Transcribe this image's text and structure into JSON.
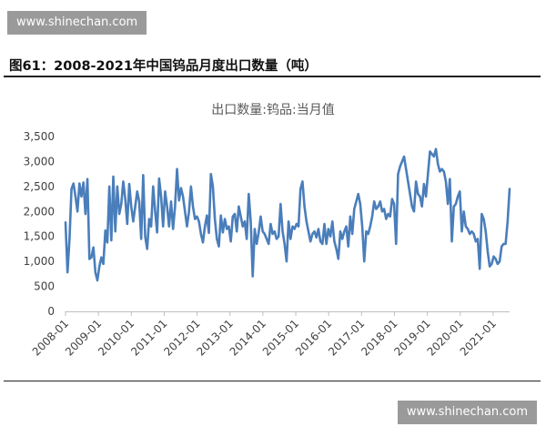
{
  "watermark": "www.shinechan.com",
  "figure_title": "图61：2008-2021年中国钨品月度出口数量（吨）",
  "chart_data": {
    "type": "line",
    "title": "出口数量:钨品:当月值",
    "xlabel": "",
    "ylabel": "",
    "ylim": [
      0,
      3500
    ],
    "yticks": [
      0,
      500,
      1000,
      1500,
      2000,
      2500,
      3000,
      3500
    ],
    "ytick_labels": [
      "0",
      "500",
      "1,000",
      "1,500",
      "2,000",
      "2,500",
      "3,000",
      "3,500"
    ],
    "xticks": [
      "2008-01",
      "2009-01",
      "2010-01",
      "2011-01",
      "2012-01",
      "2013-01",
      "2014-01",
      "2015-01",
      "2016-01",
      "2017-01",
      "2018-01",
      "2019-01",
      "2020-01",
      "2021-01"
    ],
    "grid": false,
    "legend": "none",
    "line_color": "#4a7ebb",
    "x_start": "2008-01",
    "x_end": "2021-07",
    "series": [
      {
        "values": [
          1780,
          780,
          1450,
          2450,
          2560,
          2300,
          2000,
          2560,
          2300,
          2580,
          1950,
          2650,
          1050,
          1080,
          1280,
          780,
          620,
          900,
          1080,
          950,
          1620,
          1380,
          2500,
          1420,
          2700,
          1600,
          2500,
          1950,
          2150,
          2600,
          2250,
          1750,
          2550,
          2100,
          1800,
          2100,
          2400,
          2200,
          1450,
          2730,
          1500,
          1250,
          1850,
          1700,
          2500,
          2000,
          1580,
          2660,
          2300,
          1700,
          2400,
          2100,
          1700,
          2200,
          1650,
          2100,
          2850,
          2220,
          2470,
          2300,
          2000,
          1700,
          2000,
          2500,
          2100,
          1850,
          1900,
          1800,
          1550,
          1380,
          1700,
          1920,
          1570,
          2750,
          2500,
          1850,
          1450,
          1300,
          1920,
          1580,
          1850,
          1650,
          1700,
          1400,
          1900,
          1950,
          1600,
          2100,
          1900,
          1700,
          1800,
          1450,
          2350,
          1800,
          700,
          1650,
          1350,
          1580,
          1900,
          1600,
          1550,
          1450,
          1350,
          1750,
          1550,
          1600,
          1450,
          1500,
          2150,
          1600,
          1350,
          1000,
          1800,
          1450,
          1700,
          1650,
          1750,
          1700,
          2450,
          2600,
          2100,
          1800,
          1600,
          1400,
          1550,
          1600,
          1480,
          1650,
          1400,
          1350,
          1750,
          1350,
          1650,
          1500,
          1800,
          1400,
          1250,
          1050,
          1600,
          1450,
          1600,
          1700,
          1300,
          1900,
          1550,
          2050,
          2200,
          2350,
          2150,
          1700,
          1000,
          1600,
          1550,
          1700,
          1900,
          2200,
          2050,
          2100,
          2200,
          2000,
          2050,
          1850,
          1950,
          1900,
          2250,
          2150,
          1350,
          2750,
          2900,
          3000,
          3100,
          2850,
          2600,
          2350,
          2100,
          2000,
          2600,
          2350,
          2300,
          2100,
          2550,
          2300,
          2750,
          3200,
          3150,
          3100,
          3250,
          2950,
          2800,
          2850,
          2800,
          2600,
          2150,
          2650,
          1400,
          2100,
          2150,
          2300,
          2400,
          1600,
          2000,
          1700,
          1650,
          1550,
          1600,
          1550,
          1400,
          1450,
          850,
          1950,
          1850,
          1600,
          1200,
          900,
          950,
          1100,
          1050,
          950,
          1000,
          1300,
          1350,
          1350,
          1800,
          2450
        ]
      }
    ]
  }
}
